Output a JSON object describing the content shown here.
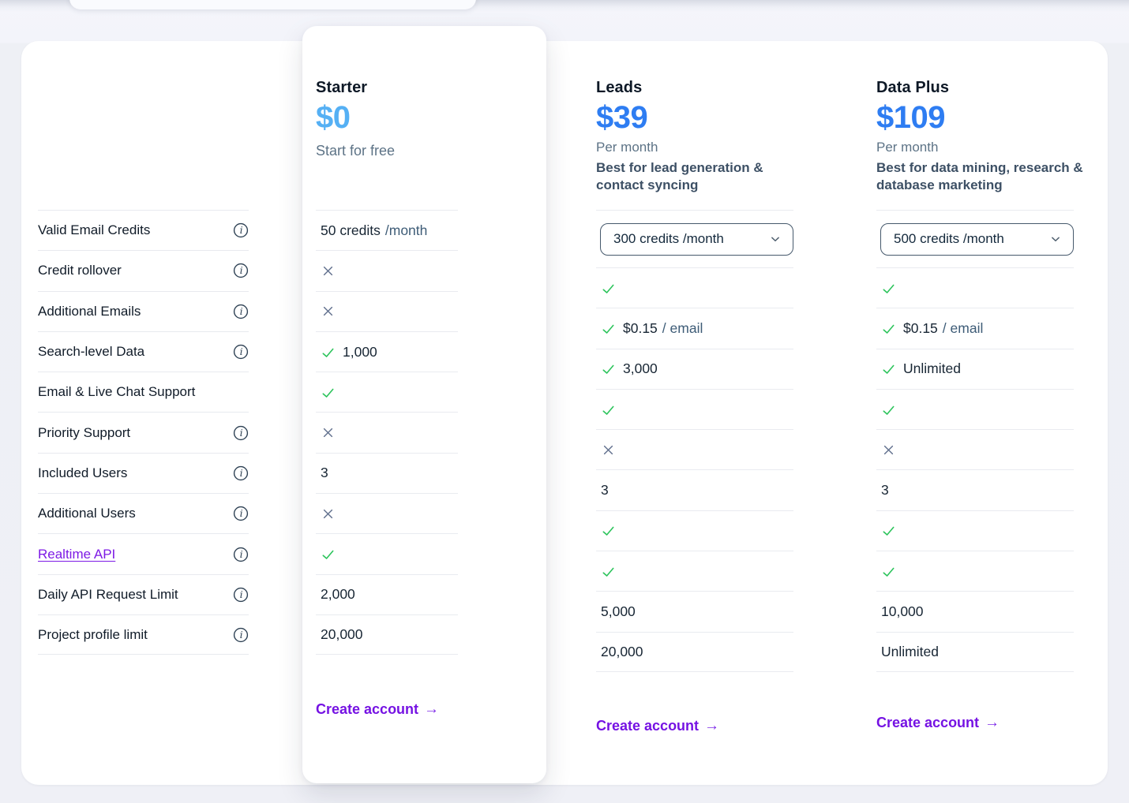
{
  "colors": {
    "accent_purple": "#7512e3",
    "link_purple": "#7d1ae5",
    "check_green": "#2dc45c",
    "cross_slate": "#5f6e8c",
    "price_sky_blue": "#55b0f4",
    "price_royal_blue": "#2e7df2",
    "page_background": "#eef0f5"
  },
  "features": {
    "items": [
      {
        "label": "Valid Email Credits",
        "info": true,
        "link": false
      },
      {
        "label": "Credit rollover",
        "info": true,
        "link": false
      },
      {
        "label": "Additional Emails",
        "info": true,
        "link": false
      },
      {
        "label": "Search-level Data",
        "info": true,
        "link": false
      },
      {
        "label": "Email & Live Chat Support",
        "info": false,
        "link": false
      },
      {
        "label": "Priority Support",
        "info": true,
        "link": false
      },
      {
        "label": "Included Users",
        "info": true,
        "link": false
      },
      {
        "label": "Additional Users",
        "info": true,
        "link": false
      },
      {
        "label": "Realtime API",
        "info": true,
        "link": true
      },
      {
        "label": "Daily API Request Limit",
        "info": true,
        "link": false
      },
      {
        "label": "Project profile limit",
        "info": true,
        "link": false
      }
    ]
  },
  "plans": {
    "starter": {
      "title": "Starter",
      "price": "$0",
      "price_color": "#55b0f4",
      "subtitle": "Start for free",
      "cta": "Create account",
      "rows": [
        {
          "type": "text",
          "value": "50 credits",
          "suffix": "/month"
        },
        {
          "type": "cross"
        },
        {
          "type": "cross"
        },
        {
          "type": "check-text",
          "value": "1,000"
        },
        {
          "type": "check"
        },
        {
          "type": "cross"
        },
        {
          "type": "text",
          "value": "3"
        },
        {
          "type": "cross"
        },
        {
          "type": "check"
        },
        {
          "type": "text",
          "value": "2,000"
        },
        {
          "type": "text",
          "value": "20,000"
        }
      ]
    },
    "leads": {
      "title": "Leads",
      "price": "$39",
      "price_color": "#2e7df2",
      "billing_period": "Per month",
      "description": "Best for lead generation & contact syncing",
      "credits_dropdown_value": "300 credits /month",
      "cta": "Create account",
      "rows": [
        {
          "type": "dropdown",
          "value": "300 credits /month"
        },
        {
          "type": "check"
        },
        {
          "type": "check-text",
          "value": "$0.15",
          "suffix": "/ email"
        },
        {
          "type": "check-text",
          "value": "3,000"
        },
        {
          "type": "check"
        },
        {
          "type": "cross"
        },
        {
          "type": "text",
          "value": "3"
        },
        {
          "type": "check"
        },
        {
          "type": "check"
        },
        {
          "type": "text",
          "value": "5,000"
        },
        {
          "type": "text",
          "value": "20,000"
        }
      ]
    },
    "data_plus": {
      "title": "Data Plus",
      "price": "$109",
      "price_color": "#2e7df2",
      "billing_period": "Per month",
      "description": "Best for data mining, research & database marketing",
      "credits_dropdown_value": "500 credits /month",
      "cta": "Create account",
      "rows": [
        {
          "type": "dropdown",
          "value": "500 credits /month"
        },
        {
          "type": "check"
        },
        {
          "type": "check-text",
          "value": "$0.15",
          "suffix": "/ email"
        },
        {
          "type": "check-text",
          "value": "Unlimited"
        },
        {
          "type": "check"
        },
        {
          "type": "cross"
        },
        {
          "type": "text",
          "value": "3"
        },
        {
          "type": "check"
        },
        {
          "type": "check"
        },
        {
          "type": "text",
          "value": "10,000"
        },
        {
          "type": "text",
          "value": "Unlimited"
        }
      ]
    }
  }
}
